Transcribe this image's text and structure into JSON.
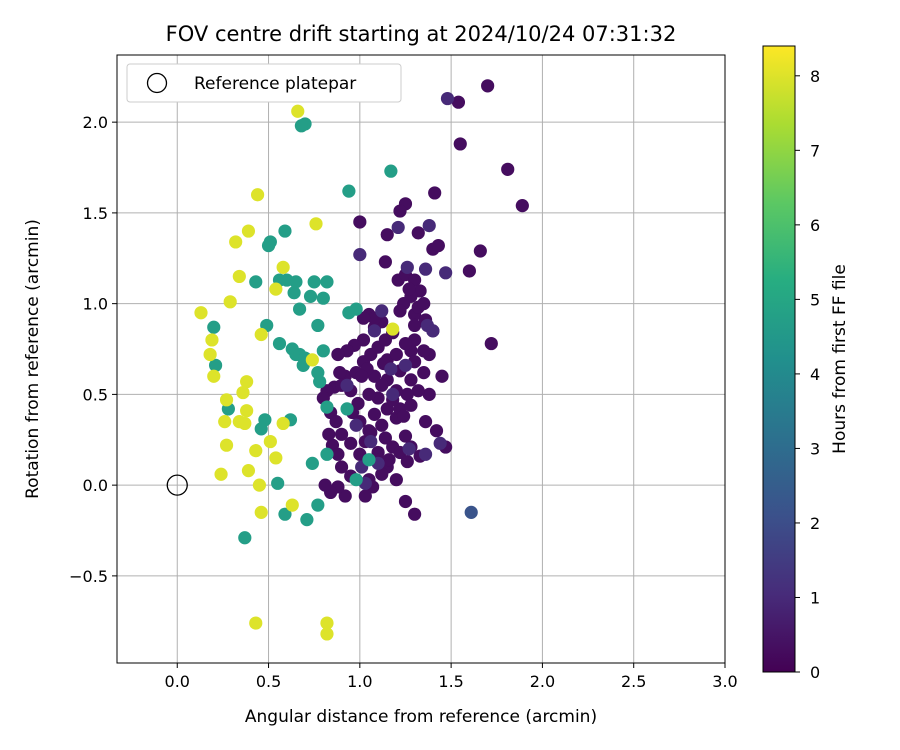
{
  "chart_data": {
    "type": "scatter",
    "title": "FOV centre drift starting at 2024/10/24 07:31:32",
    "xlabel": "Angular distance from reference (arcmin)",
    "ylabel": "Rotation from reference (arcmin)",
    "xlim": [
      -0.33,
      3.0
    ],
    "ylim": [
      -0.98,
      2.37
    ],
    "xticks": [
      0.0,
      0.5,
      1.0,
      1.5,
      2.0,
      2.5,
      3.0
    ],
    "xtick_labels": [
      "0.0",
      "0.5",
      "1.0",
      "1.5",
      "2.0",
      "2.5",
      "3.0"
    ],
    "yticks": [
      -0.5,
      0.0,
      0.5,
      1.0,
      1.5,
      2.0
    ],
    "ytick_labels": [
      "−0.5",
      "0.0",
      "0.5",
      "1.0",
      "1.5",
      "2.0"
    ],
    "grid": true,
    "legend": {
      "position": "top-left",
      "entries": [
        "Reference platepar"
      ]
    },
    "reference_point": {
      "x": 0.0,
      "y": 0.0
    },
    "colorbar": {
      "label": "Hours from first FF file",
      "colormap": "viridis",
      "range": [
        0,
        8.4
      ],
      "ticks": [
        0,
        1,
        2,
        3,
        4,
        5,
        6,
        7,
        8
      ],
      "tick_labels": [
        "0",
        "1",
        "2",
        "3",
        "4",
        "5",
        "6",
        "7",
        "8"
      ]
    },
    "series": [
      {
        "color_value": 0.3,
        "points": [
          [
            1.7,
            2.2
          ],
          [
            1.54,
            2.11
          ],
          [
            1.55,
            1.88
          ],
          [
            1.81,
            1.74
          ],
          [
            1.89,
            1.54
          ],
          [
            1.41,
            1.61
          ],
          [
            1.25,
            1.55
          ],
          [
            1.22,
            1.51
          ],
          [
            1.32,
            1.39
          ],
          [
            1.4,
            1.3
          ],
          [
            1.43,
            1.32
          ],
          [
            1.66,
            1.29
          ],
          [
            1.6,
            1.18
          ],
          [
            1.72,
            0.78
          ],
          [
            1.0,
            1.45
          ],
          [
            1.15,
            1.38
          ],
          [
            1.14,
            1.23
          ],
          [
            1.21,
            1.13
          ],
          [
            1.25,
            1.16
          ],
          [
            1.3,
            1.13
          ],
          [
            1.33,
            1.07
          ],
          [
            1.28,
            1.04
          ],
          [
            1.24,
            1.0
          ],
          [
            1.22,
            0.96
          ],
          [
            1.3,
            0.94
          ],
          [
            1.36,
            0.91
          ],
          [
            1.4,
            0.85
          ],
          [
            1.3,
            0.8
          ],
          [
            1.28,
            0.74
          ],
          [
            1.38,
            0.72
          ],
          [
            1.45,
            0.6
          ],
          [
            1.38,
            0.5
          ],
          [
            1.36,
            0.35
          ],
          [
            1.42,
            0.3
          ],
          [
            1.47,
            0.21
          ],
          [
            1.33,
            0.16
          ],
          [
            1.28,
            0.21
          ],
          [
            1.25,
            0.27
          ],
          [
            1.2,
            0.37
          ],
          [
            1.15,
            0.42
          ],
          [
            1.1,
            0.48
          ],
          [
            1.05,
            0.5
          ],
          [
            0.99,
            0.45
          ],
          [
            0.95,
            0.52
          ],
          [
            0.92,
            0.6
          ],
          [
            0.89,
            0.62
          ],
          [
            0.86,
            0.54
          ],
          [
            0.82,
            0.52
          ],
          [
            0.8,
            0.48
          ],
          [
            0.84,
            0.4
          ],
          [
            0.87,
            0.35
          ],
          [
            0.83,
            0.28
          ],
          [
            0.85,
            0.22
          ],
          [
            0.88,
            0.17
          ],
          [
            0.9,
            0.1
          ],
          [
            0.95,
            0.05
          ],
          [
            0.92,
            -0.06
          ],
          [
            0.88,
            -0.01
          ],
          [
            0.84,
            -0.04
          ],
          [
            0.81,
            0.0
          ],
          [
            1.0,
            0.17
          ],
          [
            1.03,
            0.24
          ],
          [
            1.06,
            0.29
          ],
          [
            1.1,
            0.18
          ],
          [
            1.14,
            0.26
          ],
          [
            1.18,
            0.21
          ],
          [
            1.15,
            0.1
          ],
          [
            1.12,
            0.06
          ],
          [
            1.07,
            -0.01
          ],
          [
            1.03,
            -0.06
          ],
          [
            1.2,
            0.03
          ],
          [
            1.25,
            -0.09
          ],
          [
            1.3,
            -0.16
          ],
          [
            1.05,
            0.03
          ],
          [
            1.0,
            0.35
          ],
          [
            0.96,
            0.4
          ],
          [
            0.95,
            0.23
          ],
          [
            0.9,
            0.28
          ],
          [
            0.98,
            0.62
          ],
          [
            1.02,
            0.68
          ],
          [
            1.06,
            0.72
          ],
          [
            1.1,
            0.76
          ],
          [
            1.14,
            0.8
          ],
          [
            1.18,
            0.84
          ],
          [
            1.02,
            0.8
          ],
          [
            0.97,
            0.77
          ],
          [
            0.93,
            0.74
          ],
          [
            0.88,
            0.72
          ],
          [
            0.9,
            0.55
          ],
          [
            1.08,
            0.87
          ],
          [
            1.12,
            0.9
          ],
          [
            1.05,
            0.94
          ],
          [
            1.08,
            0.92
          ],
          [
            1.02,
            0.92
          ],
          [
            1.15,
            0.58
          ],
          [
            1.22,
            0.63
          ],
          [
            1.28,
            0.58
          ],
          [
            1.32,
            0.52
          ],
          [
            1.26,
            0.5
          ],
          [
            1.2,
            0.52
          ],
          [
            1.12,
            0.55
          ],
          [
            1.08,
            0.6
          ],
          [
            1.04,
            0.64
          ],
          [
            1.01,
            0.6
          ],
          [
            1.15,
            0.69
          ],
          [
            1.2,
            0.72
          ],
          [
            1.25,
            0.78
          ],
          [
            1.3,
            0.68
          ],
          [
            1.35,
            0.62
          ],
          [
            1.22,
            0.42
          ],
          [
            1.18,
            0.47
          ],
          [
            1.28,
            0.44
          ],
          [
            1.24,
            0.38
          ],
          [
            1.12,
            0.33
          ],
          [
            1.08,
            0.39
          ],
          [
            1.05,
            0.3
          ],
          [
            1.16,
            0.14
          ],
          [
            1.22,
            0.18
          ],
          [
            1.26,
            0.13
          ],
          [
            1.1,
            0.14
          ],
          [
            1.13,
            0.67
          ],
          [
            1.35,
            0.74
          ],
          [
            1.3,
            0.88
          ],
          [
            1.32,
            0.98
          ],
          [
            1.27,
            1.08
          ],
          [
            1.35,
            1.0
          ]
        ]
      },
      {
        "color_value": 1.0,
        "points": [
          [
            1.48,
            2.13
          ],
          [
            1.21,
            1.42
          ],
          [
            1.38,
            1.43
          ],
          [
            1.47,
            1.17
          ],
          [
            1.36,
            1.19
          ],
          [
            1.26,
            1.2
          ],
          [
            1.37,
            0.88
          ],
          [
            1.4,
            0.85
          ],
          [
            1.44,
            0.23
          ],
          [
            1.36,
            0.17
          ],
          [
            1.08,
            0.85
          ],
          [
            1.0,
            1.27
          ],
          [
            1.12,
            0.96
          ],
          [
            1.18,
            0.5
          ],
          [
            0.98,
            0.33
          ],
          [
            1.06,
            0.24
          ],
          [
            1.17,
            0.64
          ],
          [
            1.25,
            0.66
          ],
          [
            1.27,
            0.2
          ],
          [
            1.01,
            0.1
          ],
          [
            0.93,
            0.55
          ],
          [
            1.1,
            0.12
          ],
          [
            1.03,
            0.01
          ]
        ]
      },
      {
        "color_value": 2.2,
        "points": [
          [
            1.61,
            -0.15
          ]
        ]
      },
      {
        "color_value": 4.7,
        "points": [
          [
            0.7,
            1.99
          ],
          [
            0.68,
            1.98
          ],
          [
            0.94,
            1.62
          ],
          [
            1.17,
            1.73
          ],
          [
            0.59,
            1.4
          ],
          [
            0.51,
            1.34
          ],
          [
            0.5,
            1.32
          ],
          [
            0.43,
            1.12
          ],
          [
            0.56,
            1.13
          ],
          [
            0.6,
            1.13
          ],
          [
            0.65,
            1.12
          ],
          [
            0.75,
            1.12
          ],
          [
            0.82,
            1.12
          ],
          [
            0.64,
            1.06
          ],
          [
            0.73,
            1.04
          ],
          [
            0.8,
            1.03
          ],
          [
            0.67,
            0.97
          ],
          [
            0.77,
            0.88
          ],
          [
            0.49,
            0.88
          ],
          [
            0.98,
            0.97
          ],
          [
            0.94,
            0.95
          ],
          [
            0.2,
            0.87
          ],
          [
            0.56,
            0.78
          ],
          [
            0.63,
            0.75
          ],
          [
            0.65,
            0.72
          ],
          [
            0.67,
            0.72
          ],
          [
            0.7,
            0.7
          ],
          [
            0.69,
            0.66
          ],
          [
            0.8,
            0.74
          ],
          [
            0.77,
            0.62
          ],
          [
            0.78,
            0.57
          ],
          [
            0.21,
            0.66
          ],
          [
            0.82,
            0.43
          ],
          [
            0.93,
            0.42
          ],
          [
            0.28,
            0.42
          ],
          [
            0.48,
            0.36
          ],
          [
            0.62,
            0.36
          ],
          [
            0.46,
            0.31
          ],
          [
            0.82,
            0.17
          ],
          [
            0.74,
            0.12
          ],
          [
            1.05,
            0.14
          ],
          [
            0.55,
            0.01
          ],
          [
            0.98,
            0.03
          ],
          [
            0.77,
            -0.11
          ],
          [
            0.59,
            -0.16
          ],
          [
            0.71,
            -0.19
          ],
          [
            0.37,
            -0.29
          ]
        ]
      },
      {
        "color_value": 8.0,
        "points": [
          [
            0.66,
            2.06
          ],
          [
            0.44,
            1.6
          ],
          [
            0.39,
            1.4
          ],
          [
            0.76,
            1.44
          ],
          [
            0.32,
            1.34
          ],
          [
            0.58,
            1.2
          ],
          [
            0.34,
            1.15
          ],
          [
            0.54,
            1.08
          ],
          [
            0.29,
            1.01
          ],
          [
            0.13,
            0.95
          ],
          [
            0.19,
            0.8
          ],
          [
            0.18,
            0.72
          ],
          [
            0.2,
            0.6
          ],
          [
            0.46,
            0.83
          ],
          [
            0.74,
            0.69
          ],
          [
            0.38,
            0.57
          ],
          [
            0.36,
            0.51
          ],
          [
            0.27,
            0.47
          ],
          [
            0.38,
            0.41
          ],
          [
            0.26,
            0.35
          ],
          [
            0.34,
            0.35
          ],
          [
            0.37,
            0.34
          ],
          [
            0.58,
            0.34
          ],
          [
            0.51,
            0.24
          ],
          [
            0.27,
            0.22
          ],
          [
            0.43,
            0.19
          ],
          [
            0.54,
            0.15
          ],
          [
            0.39,
            0.08
          ],
          [
            0.24,
            0.06
          ],
          [
            0.45,
            0.0
          ],
          [
            0.63,
            -0.11
          ],
          [
            0.46,
            -0.15
          ],
          [
            1.18,
            0.86
          ],
          [
            0.43,
            -0.76
          ],
          [
            0.82,
            -0.76
          ],
          [
            0.82,
            -0.82
          ]
        ]
      }
    ]
  }
}
